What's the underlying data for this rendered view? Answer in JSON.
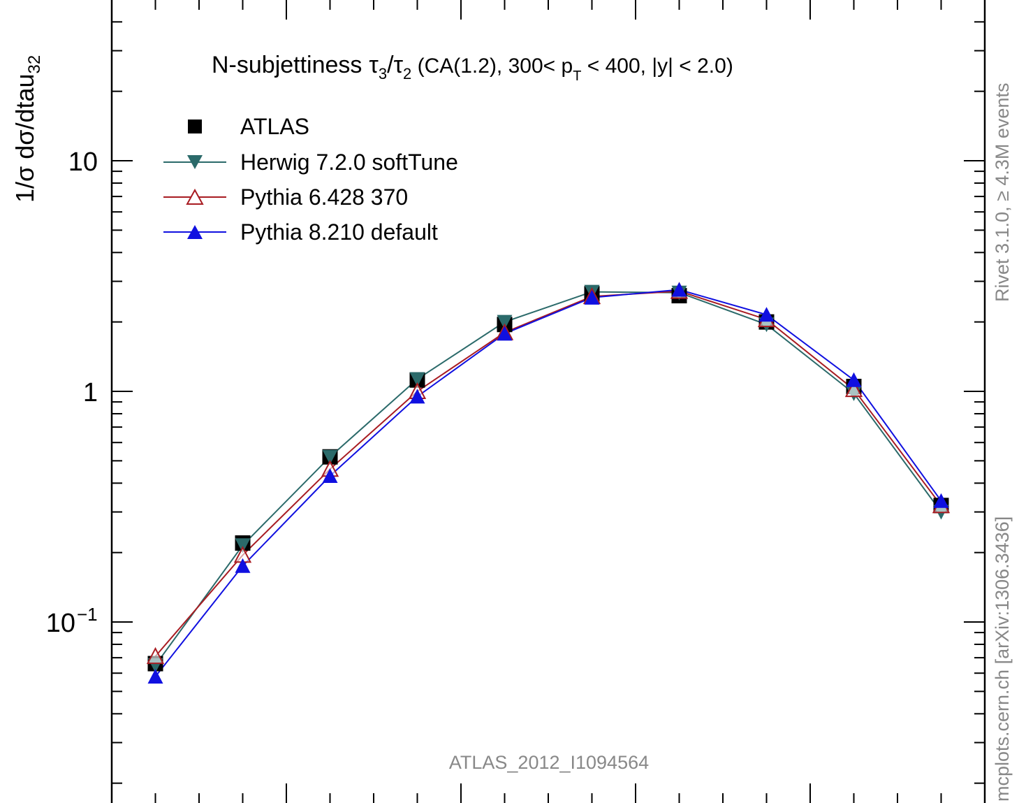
{
  "chart_data": {
    "type": "line",
    "title": "N-subjettiness",
    "title_math": {
      "tau": "τ",
      "num_sub": "3",
      "slash": "/",
      "den_sub": "2",
      "rest_a": " (CA(1.2), 300< p",
      "pt_sub": "T",
      "rest_b": " < 400, |y| < 2.0)"
    },
    "ylabel": {
      "main": "1/σ dσ/dtau",
      "sub": "32"
    },
    "yscale": "log",
    "ylim": [
      0.025,
      50
    ],
    "y_tick_labels": {
      "ten": "10",
      "one": "1",
      "tenth_base": "10",
      "tenth_exp": "−1"
    },
    "xlim": [
      0.0,
      1.0
    ],
    "x": [
      0.05,
      0.15,
      0.25,
      0.35,
      0.45,
      0.55,
      0.65,
      0.75,
      0.85,
      0.95
    ],
    "series": [
      {
        "name": "ATLAS",
        "color": "#000000",
        "marker": "square",
        "values": [
          0.066,
          0.22,
          0.52,
          1.12,
          1.95,
          2.65,
          2.6,
          2.0,
          1.05,
          0.32
        ]
      },
      {
        "name": "Herwig 7.2.0 softTune",
        "color": "#2b6a6a",
        "marker": "triangle-down",
        "values": [
          0.065,
          0.215,
          0.52,
          1.13,
          2.0,
          2.7,
          2.68,
          1.95,
          0.98,
          0.3
        ]
      },
      {
        "name": "Pythia 6.428 370",
        "color": "#a81c22",
        "marker": "triangle-up-open",
        "values": [
          0.071,
          0.195,
          0.46,
          1.0,
          1.8,
          2.58,
          2.72,
          2.05,
          1.02,
          0.32
        ]
      },
      {
        "name": "Pythia 8.210 default",
        "color": "#1010e0",
        "marker": "triangle-up",
        "values": [
          0.058,
          0.175,
          0.43,
          0.95,
          1.78,
          2.55,
          2.76,
          2.15,
          1.12,
          0.335
        ]
      }
    ],
    "legend_position": "top-left",
    "analysis_label": "ATLAS_2012_I1094564",
    "side_label_top": "Rivet 3.1.0, ≥ 4.3M events",
    "side_label_bottom": "mcplots.cern.ch [arXiv:1306.3436]",
    "grid": false
  }
}
